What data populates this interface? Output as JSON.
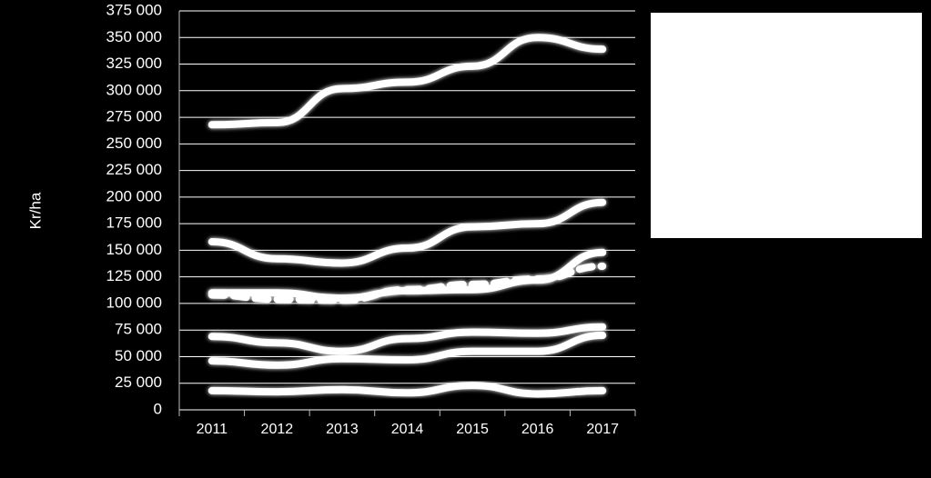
{
  "chart_data": {
    "type": "line",
    "y_label": "Kr/ha",
    "categories": [
      "2011",
      "2012",
      "2013",
      "2014",
      "2015",
      "2016",
      "2017"
    ],
    "series": [
      {
        "color": "#ffffff",
        "values": [
          268000,
          270000,
          302000,
          308000,
          323000,
          350000,
          339000
        ]
      },
      {
        "color": "#ffffff",
        "values": [
          158000,
          142000,
          138000,
          152000,
          172000,
          175000,
          195000
        ]
      },
      {
        "color": "#ffffff",
        "values": [
          110000,
          110000,
          105000,
          112000,
          113000,
          122000,
          148000
        ]
      },
      {
        "color": "#ffffff",
        "dashed": true,
        "values": [
          108000,
          104000,
          103000,
          113000,
          118000,
          123000,
          135000
        ]
      },
      {
        "color": "#ffffff",
        "values": [
          69000,
          63000,
          55000,
          67000,
          73000,
          72000,
          78000
        ]
      },
      {
        "color": "#ffffff",
        "values": [
          46000,
          42000,
          48000,
          47000,
          55000,
          55000,
          70000
        ]
      },
      {
        "color": "#ffffff",
        "values": [
          18000,
          17000,
          19000,
          16000,
          23000,
          15000,
          18000
        ]
      }
    ],
    "ylim": [
      0,
      375000
    ],
    "yticks": [
      {
        "value": 0,
        "label": "0"
      },
      {
        "value": 25000,
        "label": "25 000"
      },
      {
        "value": 50000,
        "label": "50 000"
      },
      {
        "value": 75000,
        "label": "75 000"
      },
      {
        "value": 100000,
        "label": "100 000"
      },
      {
        "value": 125000,
        "label": "125 000"
      },
      {
        "value": 150000,
        "label": "150 000"
      },
      {
        "value": 175000,
        "label": "175 000"
      },
      {
        "value": 200000,
        "label": "200 000"
      },
      {
        "value": 225000,
        "label": "225 000"
      },
      {
        "value": 250000,
        "label": "250 000"
      },
      {
        "value": 275000,
        "label": "275 000"
      },
      {
        "value": 300000,
        "label": "300 000"
      },
      {
        "value": 325000,
        "label": "325 000"
      },
      {
        "value": 350000,
        "label": "350 000"
      },
      {
        "value": 375000,
        "label": "375 000"
      }
    ],
    "grid": true
  }
}
